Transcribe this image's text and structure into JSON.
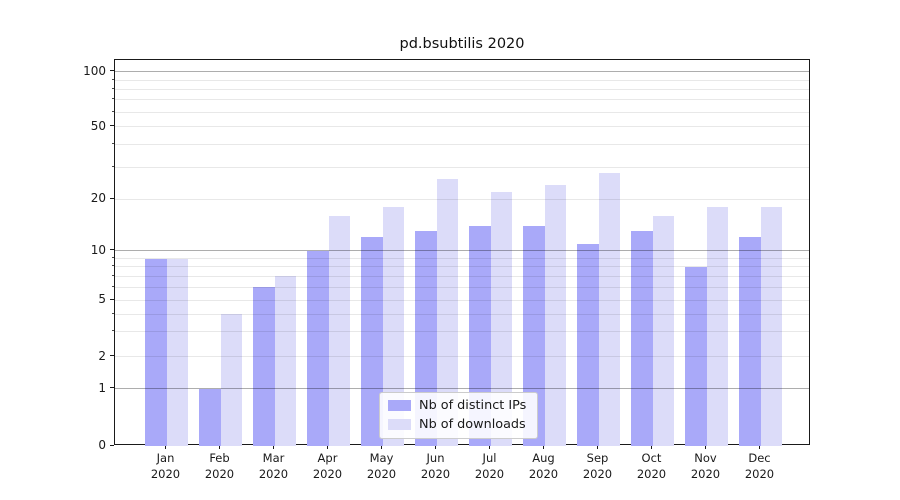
{
  "chart_data": {
    "type": "bar",
    "title": "pd.bsubtilis 2020",
    "x_year": "2020",
    "categories": [
      "Jan",
      "Feb",
      "Mar",
      "Apr",
      "May",
      "Jun",
      "Jul",
      "Aug",
      "Sep",
      "Oct",
      "Nov",
      "Dec"
    ],
    "series": [
      {
        "name": "Nb of distinct IPs",
        "color": "#a9a9f9",
        "values": [
          9,
          1,
          6,
          10,
          12,
          13,
          14,
          14,
          11,
          13,
          8,
          12
        ]
      },
      {
        "name": "Nb of downloads",
        "color": "#dcdcf9",
        "values": [
          9,
          4,
          7,
          16,
          18,
          26,
          22,
          24,
          28,
          16,
          18,
          18
        ]
      }
    ],
    "y_axis": {
      "scale": "symlog",
      "ticks": [
        0,
        1,
        2,
        5,
        10,
        20,
        50,
        100
      ],
      "major_grid": [
        1,
        10,
        100
      ],
      "minor_grid": [
        2,
        3,
        4,
        5,
        6,
        7,
        8,
        9,
        20,
        30,
        40,
        50,
        60,
        70,
        80,
        90
      ],
      "range": [
        0,
        100
      ],
      "anchors": [
        [
          0,
          1.0
        ],
        [
          1,
          0.8523
        ],
        [
          2,
          0.7694
        ],
        [
          5,
          0.623
        ],
        [
          10,
          0.4948
        ],
        [
          20,
          0.3609
        ],
        [
          50,
          0.1728
        ],
        [
          100,
          0.0303
        ]
      ]
    },
    "legend": {
      "position": "lower-center-inside"
    }
  }
}
